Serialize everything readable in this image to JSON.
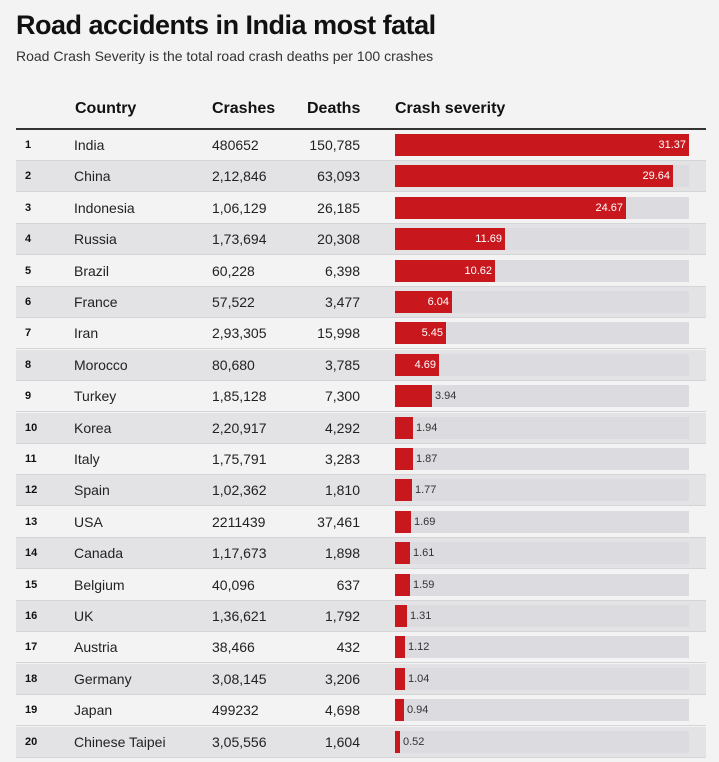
{
  "header": {
    "title": "Road accidents in India most fatal",
    "subtitle": "Road Crash Severity is the total road crash deaths per 100 crashes"
  },
  "columns": {
    "country": "Country",
    "crashes": "Crashes",
    "deaths": "Deaths",
    "severity": "Crash severity"
  },
  "colors": {
    "bar": "#c8181e",
    "track": "#dcdce0"
  },
  "chart_data": {
    "type": "table",
    "title": "Road accidents in India most fatal",
    "subtitle": "Road Crash Severity is the total road crash deaths per 100 crashes",
    "severity_range": [
      0,
      31.37
    ],
    "rows": [
      {
        "rank": "1",
        "country": "India",
        "crashes": "480652",
        "deaths": "150,785",
        "severity": 31.37,
        "severity_label": "31.37"
      },
      {
        "rank": "2",
        "country": "China",
        "crashes": "2,12,846",
        "deaths": "63,093",
        "severity": 29.64,
        "severity_label": "29.64"
      },
      {
        "rank": "3",
        "country": "Indonesia",
        "crashes": "1,06,129",
        "deaths": "26,185",
        "severity": 24.67,
        "severity_label": "24.67"
      },
      {
        "rank": "4",
        "country": "Russia",
        "crashes": "1,73,694",
        "deaths": "20,308",
        "severity": 11.69,
        "severity_label": "11.69"
      },
      {
        "rank": "5",
        "country": "Brazil",
        "crashes": "60,228",
        "deaths": "6,398",
        "severity": 10.62,
        "severity_label": "10.62"
      },
      {
        "rank": "6",
        "country": "France",
        "crashes": "57,522",
        "deaths": "3,477",
        "severity": 6.04,
        "severity_label": "6.04"
      },
      {
        "rank": "7",
        "country": "Iran",
        "crashes": "2,93,305",
        "deaths": "15,998",
        "severity": 5.45,
        "severity_label": "5.45"
      },
      {
        "rank": "8",
        "country": "Morocco",
        "crashes": "80,680",
        "deaths": "3,785",
        "severity": 4.69,
        "severity_label": "4.69"
      },
      {
        "rank": "9",
        "country": "Turkey",
        "crashes": "1,85,128",
        "deaths": "7,300",
        "severity": 3.94,
        "severity_label": "3.94"
      },
      {
        "rank": "10",
        "country": "Korea",
        "crashes": "2,20,917",
        "deaths": "4,292",
        "severity": 1.94,
        "severity_label": "1.94"
      },
      {
        "rank": "11",
        "country": "Italy",
        "crashes": "1,75,791",
        "deaths": "3,283",
        "severity": 1.87,
        "severity_label": "1.87"
      },
      {
        "rank": "12",
        "country": "Spain",
        "crashes": "1,02,362",
        "deaths": "1,810",
        "severity": 1.77,
        "severity_label": "1.77"
      },
      {
        "rank": "13",
        "country": "USA",
        "crashes": "2211439",
        "deaths": "37,461",
        "severity": 1.69,
        "severity_label": "1.69"
      },
      {
        "rank": "14",
        "country": "Canada",
        "crashes": "1,17,673",
        "deaths": "1,898",
        "severity": 1.61,
        "severity_label": "1.61"
      },
      {
        "rank": "15",
        "country": "Belgium",
        "crashes": "40,096",
        "deaths": "637",
        "severity": 1.59,
        "severity_label": "1.59"
      },
      {
        "rank": "16",
        "country": "UK",
        "crashes": "1,36,621",
        "deaths": "1,792",
        "severity": 1.31,
        "severity_label": "1.31"
      },
      {
        "rank": "17",
        "country": "Austria",
        "crashes": "38,466",
        "deaths": "432",
        "severity": 1.12,
        "severity_label": "1.12"
      },
      {
        "rank": "18",
        "country": "Germany",
        "crashes": "3,08,145",
        "deaths": "3,206",
        "severity": 1.04,
        "severity_label": "1.04"
      },
      {
        "rank": "19",
        "country": "Japan",
        "crashes": "499232",
        "deaths": "4,698",
        "severity": 0.94,
        "severity_label": "0.94"
      },
      {
        "rank": "20",
        "country": "Chinese Taipei",
        "crashes": "3,05,556",
        "deaths": "1,604",
        "severity": 0.52,
        "severity_label": "0.52"
      }
    ]
  }
}
